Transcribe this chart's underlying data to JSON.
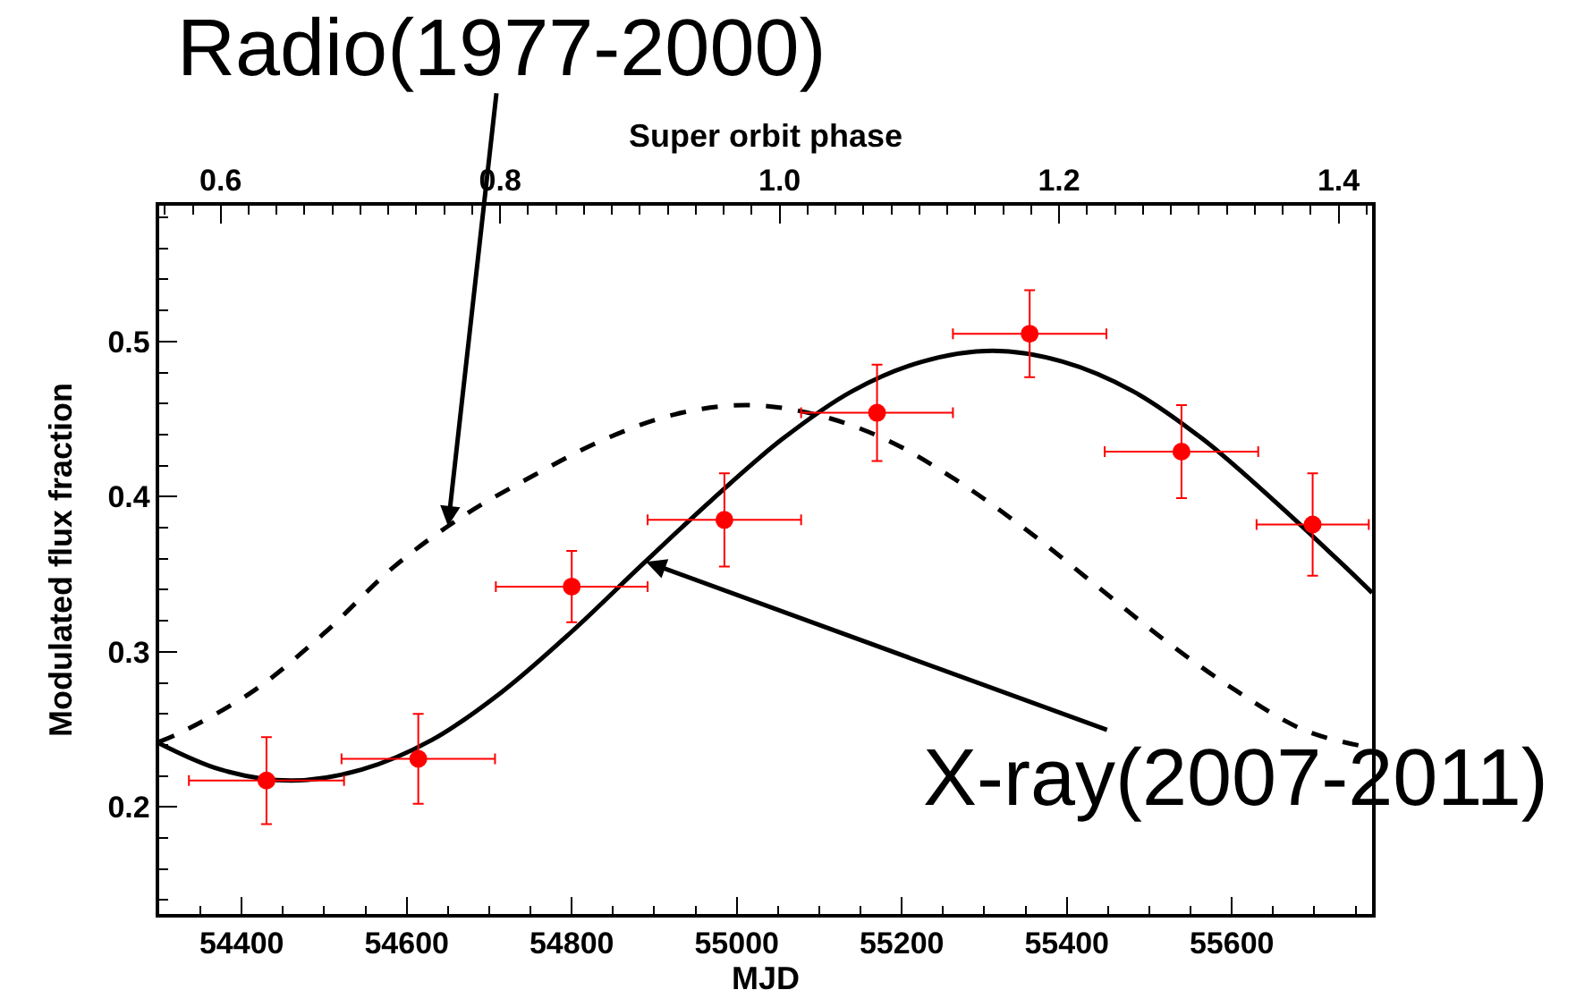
{
  "chart_data": {
    "type": "scatter",
    "xlabel": "MJD",
    "ylabel": "Modulated flux fraction",
    "x2label": "Super orbit phase",
    "xlim": [
      54300,
      55770
    ],
    "xticks": [
      54400,
      54600,
      54800,
      55000,
      55200,
      55400,
      55600
    ],
    "ylim": [
      0.131,
      0.5875
    ],
    "yticks": [
      0.2,
      0.3,
      0.4,
      0.5
    ],
    "x2lim": [
      0.556,
      1.424
    ],
    "x2ticks": [
      0.6,
      0.8,
      {
        "value": 1.0,
        "label": "1.0"
      },
      1.2,
      1.4
    ],
    "series": [
      {
        "type": "line",
        "color": "#000000",
        "line_style": "solid",
        "marker": "none",
        "x": [
          54300,
          54375,
          54460,
          54545,
          54630,
          54715,
          54800,
          54885,
          54970,
          55055,
          55140,
          55225,
          55310,
          55395,
          55480,
          55565,
          55650,
          55735,
          55770
        ],
        "values": [
          0.241,
          0.224,
          0.217,
          0.224,
          0.243,
          0.274,
          0.313,
          0.356,
          0.398,
          0.437,
          0.468,
          0.487,
          0.494,
          0.487,
          0.468,
          0.437,
          0.398,
          0.356,
          0.338
        ]
      },
      {
        "type": "line",
        "color": "#000000",
        "line_style": "dashed",
        "marker": "none",
        "x": [
          54300,
          54330,
          54415,
          54500,
          54585,
          54670,
          54755,
          54840,
          54925,
          55010,
          55095,
          55180,
          55265,
          55350,
          55435,
          55520,
          55605,
          55690,
          55770
        ],
        "values": [
          0.242,
          0.249,
          0.275,
          0.312,
          0.355,
          0.388,
          0.414,
          0.437,
          0.453,
          0.459,
          0.453,
          0.437,
          0.411,
          0.379,
          0.343,
          0.307,
          0.275,
          0.249,
          0.238
        ]
      },
      {
        "color": "#ff0000",
        "marker": "circle",
        "x": [
          54430,
          54614,
          54800,
          54985,
          55170,
          55355,
          55539,
          55698
        ],
        "values": [
          0.217,
          0.231,
          0.342,
          0.385,
          0.454,
          0.505,
          0.429,
          0.382
        ],
        "errors": [
          0.028,
          0.029,
          0.023,
          0.03,
          0.031,
          0.028,
          0.03,
          0.033
        ],
        "xerrors": [
          94,
          93,
          92,
          93,
          92,
          93,
          93,
          68
        ]
      }
    ],
    "annotations": [
      {
        "text": "Radio(1977-2000)",
        "x": 54650,
        "y": 0.381
      },
      {
        "text": "X-ray(2007-2011)",
        "x": 54890,
        "y": 0.358
      }
    ]
  }
}
